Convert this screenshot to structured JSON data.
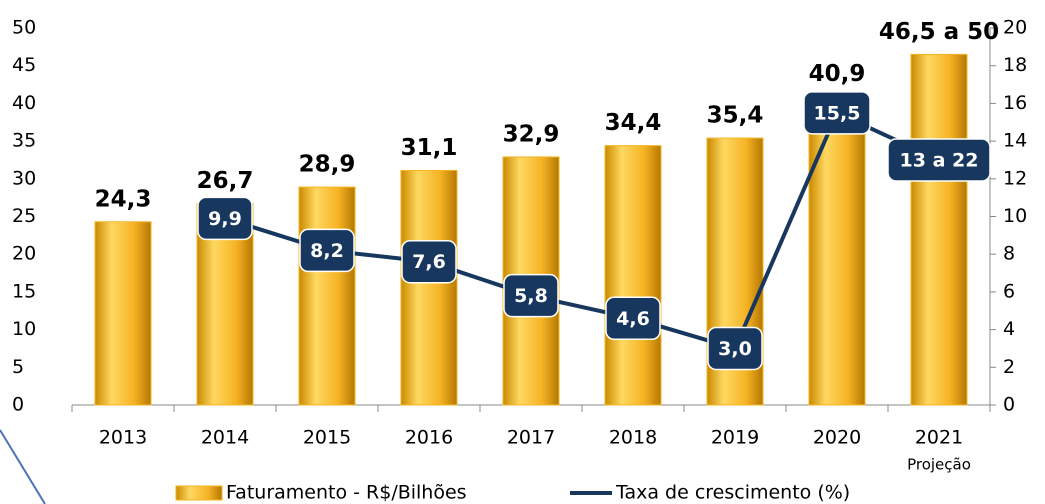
{
  "chart_data": {
    "type": "bar",
    "categories": [
      "2013",
      "2014",
      "2015",
      "2016",
      "2017",
      "2018",
      "2019",
      "2020",
      "2021"
    ],
    "annotation": "Projeção",
    "series": [
      {
        "name": "Faturamento - R$/Bilhões",
        "type": "bar",
        "color": "#f5b324",
        "values": [
          24.3,
          26.7,
          28.9,
          31.1,
          32.9,
          34.4,
          35.4,
          40.9,
          46.5
        ],
        "value_labels": [
          "24,3",
          "26,7",
          "28,9",
          "31,1",
          "32,9",
          "34,4",
          "35,4",
          "40,9",
          "46,5 a 50"
        ]
      },
      {
        "name": "Taxa de crescimento (%)",
        "type": "line",
        "axis": "y2",
        "color": "#17375e",
        "values": [
          null,
          9.9,
          8.2,
          7.6,
          5.8,
          4.6,
          3.0,
          15.5,
          13
        ],
        "value_labels": [
          null,
          "9,9",
          "8,2",
          "7,6",
          "5,8",
          "4,6",
          "3,0",
          "15,5",
          "13 a 22"
        ]
      }
    ],
    "ylim": [
      0,
      50
    ],
    "yticks": [
      0,
      5,
      10,
      15,
      20,
      25,
      30,
      35,
      40,
      45,
      50
    ],
    "y2lim": [
      0,
      20
    ],
    "y2ticks": [
      0,
      2,
      4,
      6,
      8,
      10,
      12,
      14,
      16,
      18,
      20
    ]
  }
}
